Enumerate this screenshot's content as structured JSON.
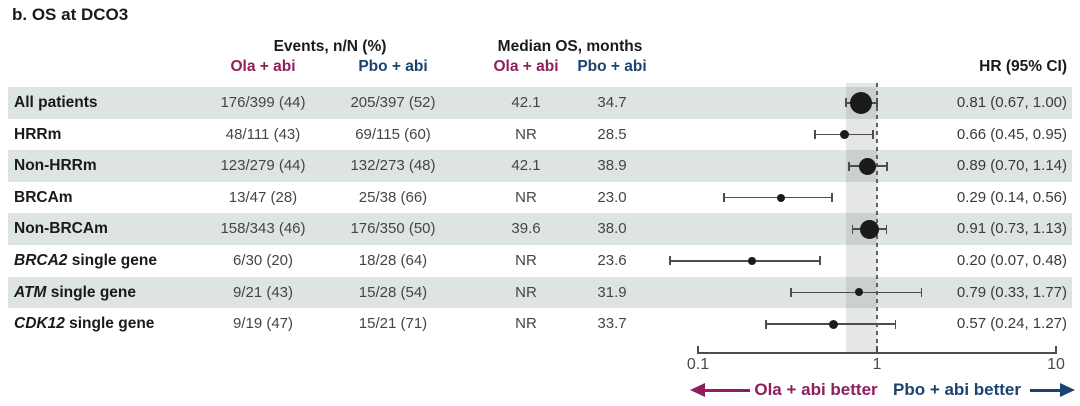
{
  "title": "b. OS at DCO3",
  "header": {
    "events_group": "Events, n/N (%)",
    "median_group": "Median OS, months",
    "arm_ola": "Ola + abi",
    "arm_pbo": "Pbo + abi",
    "hr": "HR (95% CI)"
  },
  "colors": {
    "ola_accent": "#8d205c",
    "pbo_accent": "#1b4371",
    "row_shade": "#dde4e2",
    "plot_band": "rgba(125,132,132,0.20)",
    "marker": "#1b1b1b",
    "ci_line": "#4d4d4d",
    "axis": "#4d4d4d",
    "value_text": "#454545"
  },
  "rows": [
    {
      "gene": "",
      "label": "All patients",
      "events_ola": "176/399 (44)",
      "events_pbo": "205/397 (52)",
      "median_ola": "42.1",
      "median_pbo": "34.7",
      "hr_ci": "0.81 (0.67, 1.00)"
    },
    {
      "gene": "",
      "label": "HRRm",
      "events_ola": "48/111 (43)",
      "events_pbo": "69/115 (60)",
      "median_ola": "NR",
      "median_pbo": "28.5",
      "hr_ci": "0.66 (0.45, 0.95)"
    },
    {
      "gene": "",
      "label": "Non-HRRm",
      "events_ola": "123/279 (44)",
      "events_pbo": "132/273 (48)",
      "median_ola": "42.1",
      "median_pbo": "38.9",
      "hr_ci": "0.89 (0.70, 1.14)"
    },
    {
      "gene": "",
      "label": "BRCAm",
      "events_ola": "13/47 (28)",
      "events_pbo": "25/38 (66)",
      "median_ola": "NR",
      "median_pbo": "23.0",
      "hr_ci": "0.29 (0.14, 0.56)"
    },
    {
      "gene": "",
      "label": "Non-BRCAm",
      "events_ola": "158/343 (46)",
      "events_pbo": "176/350 (50)",
      "median_ola": "39.6",
      "median_pbo": "38.0",
      "hr_ci": "0.91 (0.73, 1.13)"
    },
    {
      "gene": "BRCA2",
      "label": " single gene",
      "events_ola": "6/30 (20)",
      "events_pbo": "18/28 (64)",
      "median_ola": "NR",
      "median_pbo": "23.6",
      "hr_ci": "0.20 (0.07, 0.48)"
    },
    {
      "gene": "ATM",
      "label": " single gene",
      "events_ola": "9/21 (43)",
      "events_pbo": "15/28 (54)",
      "median_ola": "NR",
      "median_pbo": "31.9",
      "hr_ci": "0.79 (0.33, 1.77)"
    },
    {
      "gene": "CDK12",
      "label": " single gene",
      "events_ola": "9/19 (47)",
      "events_pbo": "15/21 (71)",
      "median_ola": "NR",
      "median_pbo": "33.7",
      "hr_ci": "0.57 (0.24, 1.27)"
    }
  ],
  "chart_data": {
    "type": "forest",
    "x_scale": "log10",
    "x_range": [
      0.1,
      10
    ],
    "x_ticks": [
      "0.1",
      "1",
      "10"
    ],
    "reference_line": 1.0,
    "shaded_band": [
      0.67,
      1.0
    ],
    "series": [
      {
        "name": "All patients",
        "hr": 0.81,
        "ci": [
          0.67,
          1.0
        ],
        "marker_size": 22
      },
      {
        "name": "HRRm",
        "hr": 0.66,
        "ci": [
          0.45,
          0.95
        ],
        "marker_size": 9
      },
      {
        "name": "Non-HRRm",
        "hr": 0.89,
        "ci": [
          0.7,
          1.14
        ],
        "marker_size": 17
      },
      {
        "name": "BRCAm",
        "hr": 0.29,
        "ci": [
          0.14,
          0.56
        ],
        "marker_size": 8
      },
      {
        "name": "Non-BRCAm",
        "hr": 0.91,
        "ci": [
          0.73,
          1.13
        ],
        "marker_size": 19
      },
      {
        "name": "BRCA2 single gene",
        "hr": 0.2,
        "ci": [
          0.07,
          0.48
        ],
        "marker_size": 8
      },
      {
        "name": "ATM single gene",
        "hr": 0.79,
        "ci": [
          0.33,
          1.77
        ],
        "marker_size": 8
      },
      {
        "name": "CDK12 single gene",
        "hr": 0.57,
        "ci": [
          0.24,
          1.27
        ],
        "marker_size": 9
      }
    ],
    "legend_left": "Ola + abi better",
    "legend_right": "Pbo + abi better",
    "legend_position": "bottom",
    "grid": false
  }
}
